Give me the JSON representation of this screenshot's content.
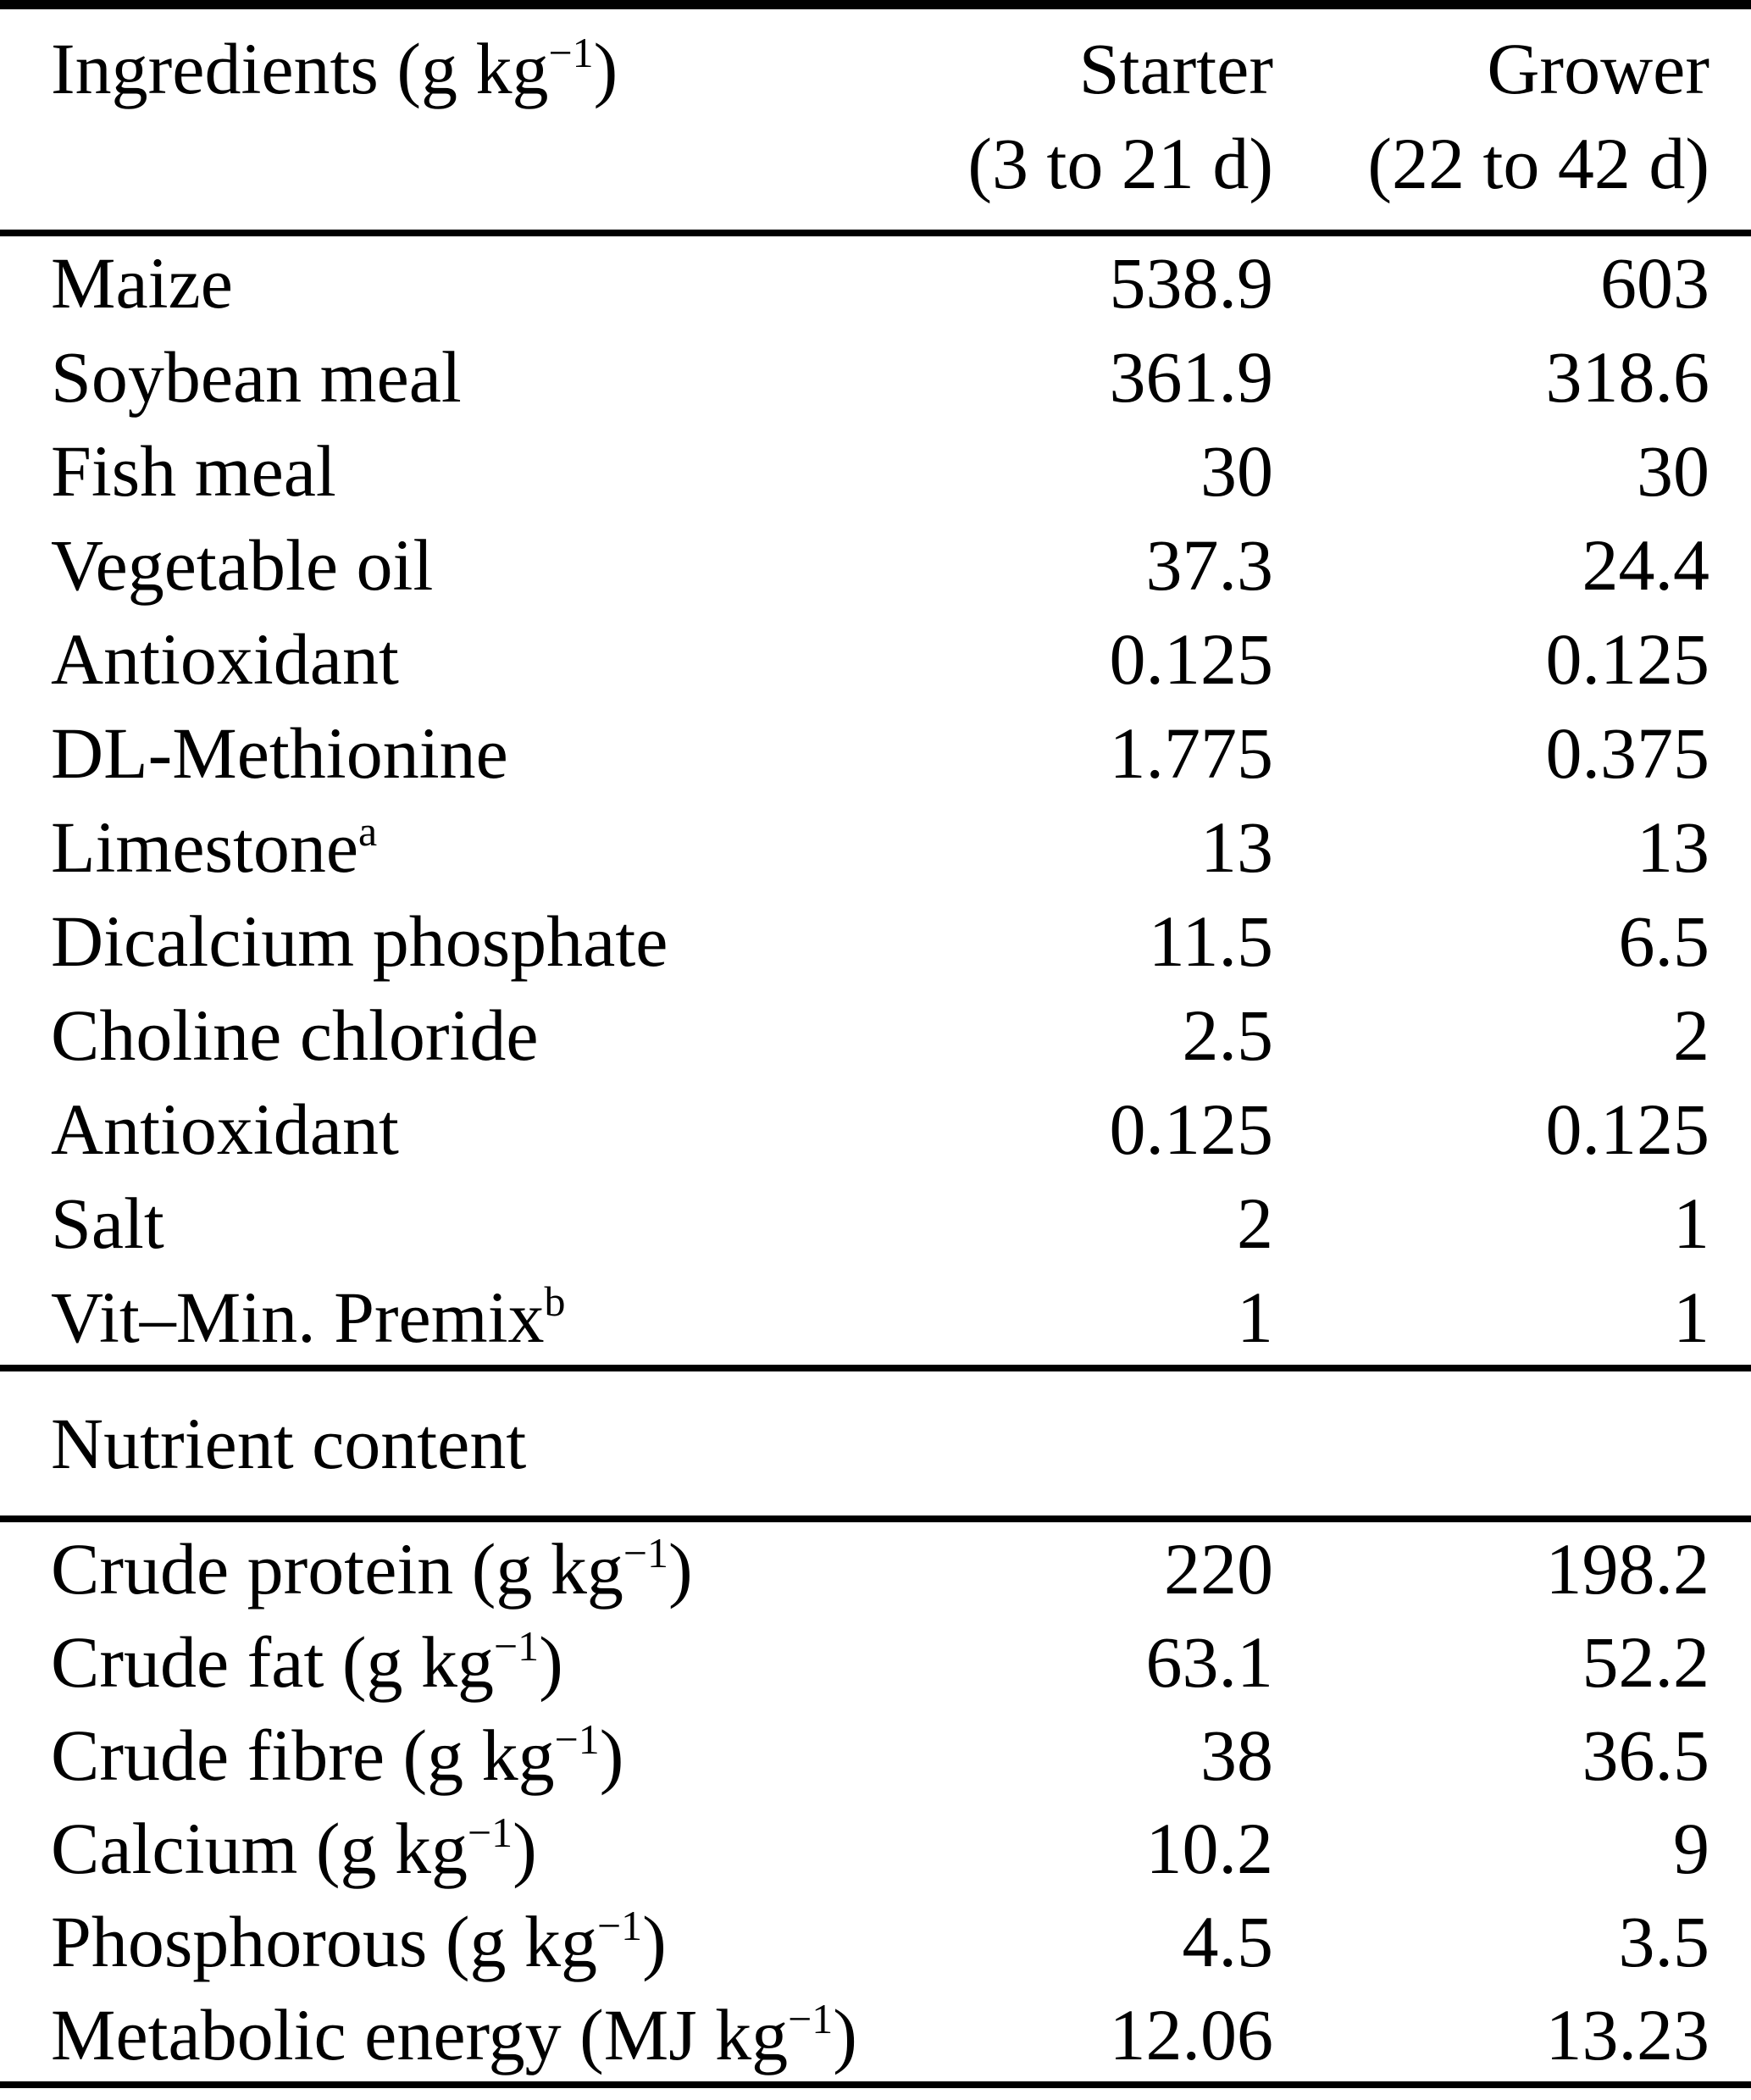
{
  "table": {
    "header": {
      "col1": {
        "pre": "Ingredients (g kg",
        "sup": "−1",
        "post": ")"
      },
      "starter_line1": "Starter",
      "starter_line2": "(3 to 21 d)",
      "grower_line1": "Grower",
      "grower_line2": "(22 to 42 d)"
    },
    "ingredients": [
      {
        "pre": "Maize",
        "sup": "",
        "post": "",
        "starter": "538.9",
        "grower": "603"
      },
      {
        "pre": "Soybean meal",
        "sup": "",
        "post": "",
        "starter": "361.9",
        "grower": "318.6"
      },
      {
        "pre": "Fish meal",
        "sup": "",
        "post": "",
        "starter": "30",
        "grower": "30"
      },
      {
        "pre": "Vegetable oil",
        "sup": "",
        "post": "",
        "starter": "37.3",
        "grower": "24.4"
      },
      {
        "pre": "Antioxidant",
        "sup": "",
        "post": "",
        "starter": "0.125",
        "grower": "0.125"
      },
      {
        "pre": "DL-Methionine",
        "sup": "",
        "post": "",
        "starter": "1.775",
        "grower": "0.375"
      },
      {
        "pre": "Limestone",
        "sup": "a",
        "post": "",
        "starter": "13",
        "grower": "13"
      },
      {
        "pre": "Dicalcium phosphate",
        "sup": "",
        "post": "",
        "starter": "11.5",
        "grower": "6.5"
      },
      {
        "pre": "Choline chloride",
        "sup": "",
        "post": "",
        "starter": "2.5",
        "grower": "2"
      },
      {
        "pre": "Antioxidant",
        "sup": "",
        "post": "",
        "starter": "0.125",
        "grower": "0.125"
      },
      {
        "pre": "Salt",
        "sup": "",
        "post": "",
        "starter": "2",
        "grower": "1"
      },
      {
        "pre": "Vit–Min. Premix",
        "sup": "b",
        "post": "",
        "starter": "1",
        "grower": "1"
      }
    ],
    "section_header": "Nutrient content",
    "nutrients": [
      {
        "pre": "Crude protein (g kg",
        "sup": "−1",
        "post": ")",
        "starter": "220",
        "grower": "198.2"
      },
      {
        "pre": "Crude fat (g kg",
        "sup": "−1",
        "post": ")",
        "starter": "63.1",
        "grower": "52.2"
      },
      {
        "pre": "Crude fibre (g kg",
        "sup": "−1",
        "post": ")",
        "starter": "38",
        "grower": "36.5"
      },
      {
        "pre": "Calcium (g kg",
        "sup": "−1",
        "post": ")",
        "starter": "10.2",
        "grower": "9"
      },
      {
        "pre": "Phosphorous (g kg",
        "sup": "−1",
        "post": ")",
        "starter": "4.5",
        "grower": "3.5"
      },
      {
        "pre": "Metabolic energy (MJ kg",
        "sup": "−1",
        "post": ")",
        "starter": "12.06",
        "grower": "13.23"
      }
    ]
  }
}
